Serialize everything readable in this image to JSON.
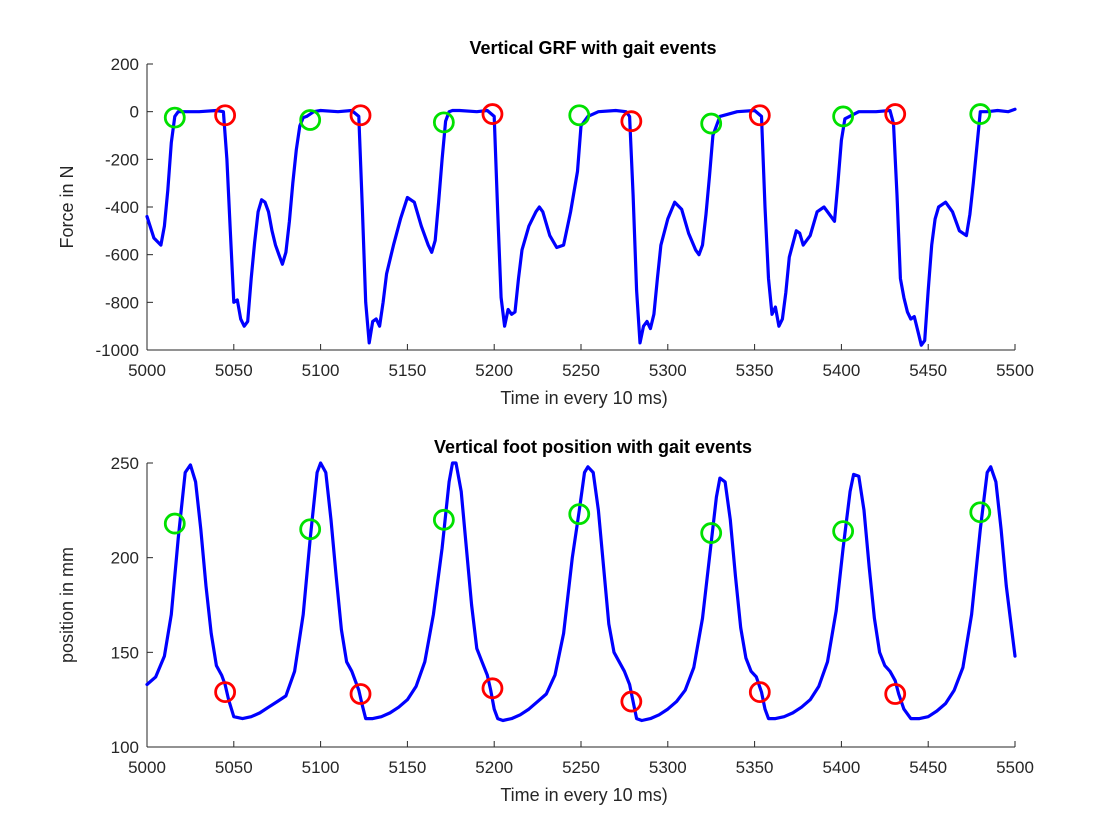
{
  "chart_data": [
    {
      "type": "line",
      "title": "Vertical GRF with gait events",
      "xlabel": "Time in every 10 ms)",
      "ylabel": "Force in N",
      "xlim": [
        5000,
        5500
      ],
      "ylim": [
        -1000,
        200
      ],
      "xticks": [
        "5000",
        "5050",
        "5100",
        "5150",
        "5200",
        "5250",
        "5300",
        "5350",
        "5400",
        "5450",
        "5500"
      ],
      "yticks": [
        "200",
        "0",
        "-200",
        "-400",
        "-600",
        "-800",
        "-1000"
      ],
      "grid": false,
      "series": [
        {
          "color": "#0000ff",
          "x": [
            5000,
            5004,
            5008,
            5010,
            5012,
            5014,
            5016,
            5018,
            5022,
            5030,
            5040,
            5044,
            5046,
            5048,
            5050,
            5052,
            5054,
            5056,
            5058,
            5060,
            5062,
            5064,
            5066,
            5068,
            5070,
            5072,
            5074,
            5076,
            5078,
            5080,
            5082,
            5084,
            5086,
            5088,
            5090,
            5092,
            5094,
            5096,
            5100,
            5110,
            5118,
            5122,
            5124,
            5126,
            5128,
            5130,
            5132,
            5134,
            5136,
            5138,
            5142,
            5146,
            5150,
            5154,
            5158,
            5162,
            5164,
            5166,
            5168,
            5170,
            5172,
            5174,
            5176,
            5180,
            5190,
            5196,
            5200,
            5202,
            5204,
            5206,
            5208,
            5210,
            5212,
            5214,
            5216,
            5220,
            5224,
            5226,
            5228,
            5232,
            5236,
            5240,
            5244,
            5248,
            5250,
            5254,
            5260,
            5270,
            5276,
            5278,
            5280,
            5282,
            5284,
            5286,
            5288,
            5290,
            5292,
            5294,
            5296,
            5300,
            5304,
            5308,
            5312,
            5316,
            5318,
            5320,
            5322,
            5324,
            5326,
            5330,
            5340,
            5350,
            5354,
            5356,
            5358,
            5360,
            5362,
            5364,
            5366,
            5368,
            5370,
            5374,
            5376,
            5378,
            5382,
            5386,
            5390,
            5394,
            5396,
            5398,
            5400,
            5402,
            5410,
            5420,
            5428,
            5430,
            5432,
            5434,
            5436,
            5438,
            5440,
            5442,
            5444,
            5446,
            5448,
            5450,
            5452,
            5454,
            5456,
            5460,
            5464,
            5468,
            5472,
            5474,
            5476,
            5478,
            5480,
            5484,
            5490,
            5496,
            5500
          ],
          "y": [
            -440,
            -530,
            -560,
            -480,
            -330,
            -130,
            -20,
            0,
            0,
            0,
            5,
            0,
            -200,
            -500,
            -800,
            -790,
            -870,
            -900,
            -880,
            -700,
            -550,
            -420,
            -370,
            -380,
            -420,
            -500,
            -560,
            -600,
            -640,
            -590,
            -460,
            -300,
            -160,
            -60,
            -25,
            -20,
            -10,
            0,
            5,
            0,
            5,
            -20,
            -400,
            -800,
            -970,
            -880,
            -870,
            -900,
            -800,
            -680,
            -560,
            -450,
            -360,
            -380,
            -480,
            -560,
            -590,
            -540,
            -380,
            -200,
            -40,
            0,
            5,
            5,
            0,
            5,
            -20,
            -420,
            -780,
            -900,
            -830,
            -850,
            -840,
            -700,
            -580,
            -480,
            -420,
            -400,
            -420,
            -520,
            -570,
            -560,
            -420,
            -250,
            -60,
            -20,
            0,
            5,
            0,
            -20,
            -350,
            -750,
            -970,
            -900,
            -880,
            -910,
            -850,
            -700,
            -560,
            -450,
            -380,
            -410,
            -510,
            -580,
            -600,
            -560,
            -430,
            -270,
            -100,
            -20,
            0,
            5,
            -20,
            -400,
            -700,
            -850,
            -820,
            -900,
            -870,
            -760,
            -610,
            -500,
            -510,
            -560,
            -520,
            -420,
            -400,
            -440,
            -460,
            -300,
            -120,
            -30,
            0,
            0,
            5,
            -50,
            -350,
            -700,
            -780,
            -840,
            -870,
            -860,
            -920,
            -980,
            -960,
            -750,
            -560,
            -450,
            -400,
            -380,
            -420,
            -500,
            -520,
            -430,
            -300,
            -150,
            0,
            0,
            5,
            0,
            10
          ]
        }
      ],
      "events": {
        "green": {
          "color": "#00e000",
          "x": [
            5016,
            5094,
            5171,
            5249,
            5325,
            5401,
            5480
          ],
          "y": [
            -25,
            -35,
            -45,
            -15,
            -50,
            -20,
            -10
          ]
        },
        "red": {
          "color": "#ff0000",
          "x": [
            5045,
            5123,
            5199,
            5279,
            5353,
            5431
          ],
          "y": [
            -15,
            -15,
            -10,
            -40,
            -15,
            -10
          ]
        }
      }
    },
    {
      "type": "line",
      "title": "Vertical foot position with gait events",
      "xlabel": "Time in every 10 ms)",
      "ylabel": "position in mm",
      "xlim": [
        5000,
        5500
      ],
      "ylim": [
        100,
        250
      ],
      "xticks": [
        "5000",
        "5050",
        "5100",
        "5150",
        "5200",
        "5250",
        "5300",
        "5350",
        "5400",
        "5450",
        "5500"
      ],
      "yticks": [
        "250",
        "200",
        "150",
        "100"
      ],
      "grid": false,
      "series": [
        {
          "color": "#0000ff",
          "x": [
            5000,
            5005,
            5010,
            5014,
            5018,
            5022,
            5025,
            5028,
            5031,
            5034,
            5037,
            5040,
            5043,
            5045,
            5047,
            5050,
            5055,
            5060,
            5065,
            5070,
            5075,
            5080,
            5085,
            5090,
            5094,
            5098,
            5100,
            5103,
            5106,
            5109,
            5112,
            5115,
            5118,
            5122,
            5124,
            5126,
            5130,
            5135,
            5140,
            5145,
            5150,
            5155,
            5160,
            5165,
            5170,
            5174,
            5176,
            5178,
            5181,
            5184,
            5187,
            5190,
            5193,
            5196,
            5198,
            5200,
            5202,
            5205,
            5210,
            5215,
            5220,
            5225,
            5230,
            5235,
            5240,
            5245,
            5249,
            5252,
            5254,
            5257,
            5260,
            5263,
            5266,
            5269,
            5272,
            5275,
            5278,
            5280,
            5282,
            5285,
            5290,
            5295,
            5300,
            5305,
            5310,
            5315,
            5320,
            5325,
            5328,
            5330,
            5333,
            5336,
            5339,
            5342,
            5345,
            5348,
            5351,
            5354,
            5356,
            5358,
            5362,
            5367,
            5372,
            5377,
            5382,
            5387,
            5392,
            5397,
            5401,
            5405,
            5407,
            5410,
            5413,
            5416,
            5419,
            5422,
            5425,
            5428,
            5431,
            5433,
            5436,
            5440,
            5445,
            5450,
            5455,
            5460,
            5465,
            5470,
            5475,
            5480,
            5484,
            5486,
            5489,
            5492,
            5495,
            5500
          ],
          "y": [
            133,
            137,
            148,
            170,
            210,
            245,
            249,
            240,
            215,
            185,
            160,
            143,
            138,
            133,
            125,
            116,
            115,
            116,
            118,
            121,
            124,
            127,
            140,
            170,
            210,
            245,
            250,
            245,
            220,
            190,
            162,
            145,
            140,
            130,
            122,
            115,
            115,
            116,
            118,
            121,
            125,
            132,
            145,
            170,
            205,
            240,
            250,
            250,
            235,
            205,
            175,
            152,
            145,
            138,
            130,
            120,
            115,
            114,
            115,
            117,
            120,
            124,
            128,
            138,
            160,
            200,
            225,
            245,
            248,
            245,
            225,
            195,
            165,
            150,
            145,
            140,
            133,
            124,
            115,
            114,
            115,
            117,
            120,
            124,
            130,
            142,
            168,
            208,
            232,
            242,
            240,
            220,
            190,
            163,
            147,
            140,
            137,
            129,
            120,
            115,
            115,
            116,
            118,
            121,
            125,
            132,
            145,
            172,
            205,
            235,
            244,
            243,
            225,
            195,
            168,
            150,
            143,
            140,
            135,
            128,
            120,
            115,
            115,
            116,
            119,
            123,
            130,
            142,
            170,
            215,
            245,
            248,
            240,
            215,
            185,
            148
          ]
        }
      ],
      "events": {
        "green": {
          "color": "#00e000",
          "x": [
            5016,
            5094,
            5171,
            5249,
            5325,
            5401,
            5480
          ],
          "y": [
            218,
            215,
            220,
            223,
            213,
            214,
            224
          ]
        },
        "red": {
          "color": "#ff0000",
          "x": [
            5045,
            5123,
            5199,
            5279,
            5353,
            5431
          ],
          "y": [
            129,
            128,
            131,
            124,
            129,
            128
          ]
        }
      }
    }
  ]
}
